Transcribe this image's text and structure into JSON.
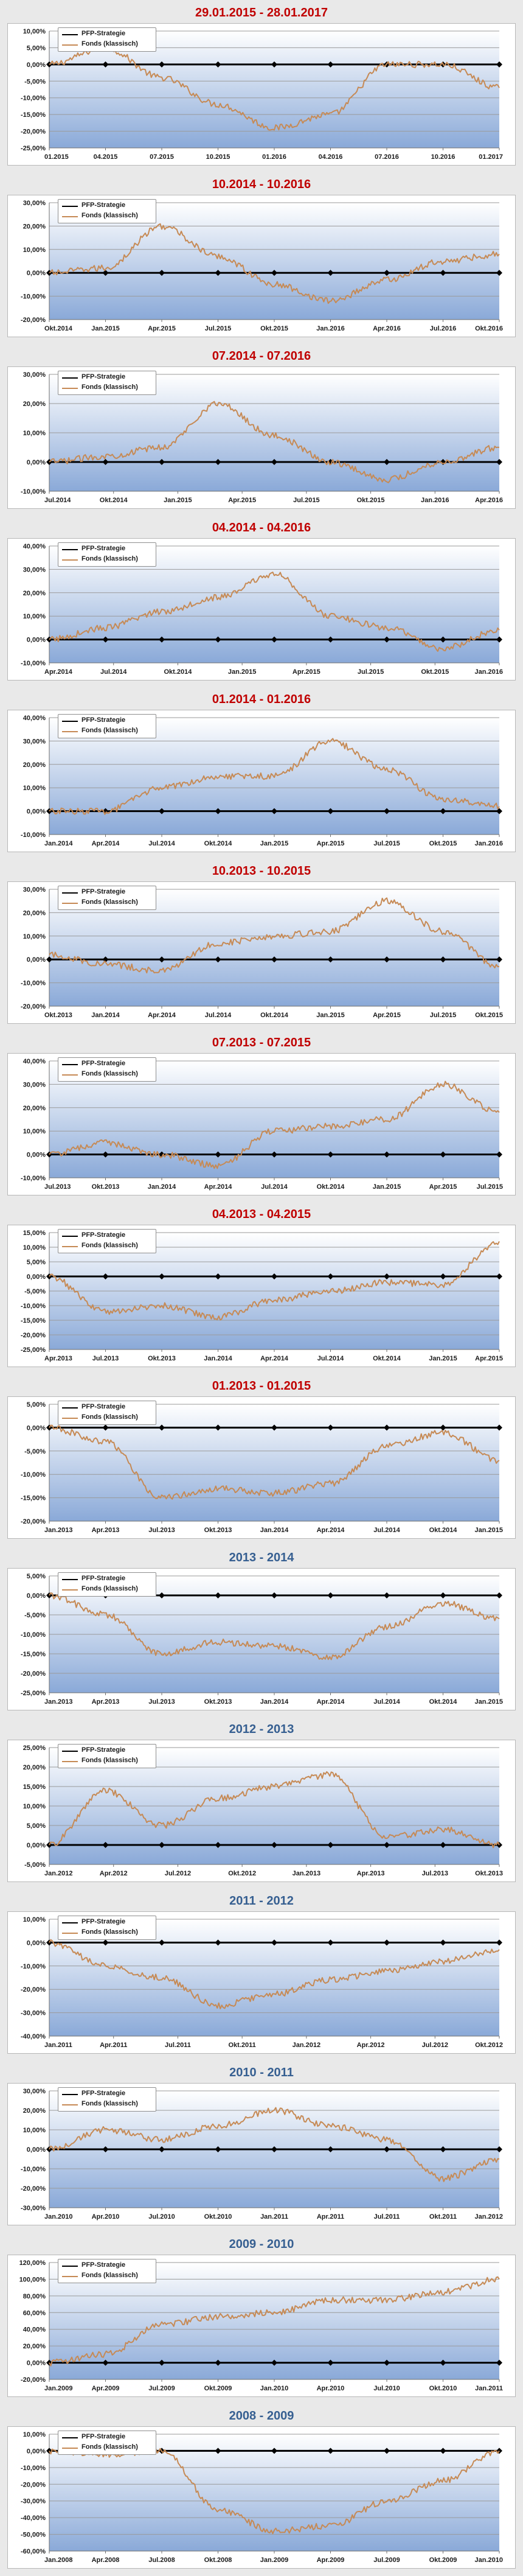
{
  "colors": {
    "title_red": "#c00000",
    "title_blue": "#365f91",
    "strategy_line": "#000000",
    "fund_line": "#c68a55",
    "plot_bg_top": "#ffffff",
    "plot_bg_bottom": "#8aa9d8"
  },
  "legend": {
    "strategy": "PFP-Strategie",
    "fund": "Fonds (klassisch)"
  },
  "chart_data": [
    {
      "type": "line",
      "title": "29.01.2015 - 28.01.2017",
      "title_color": "#c00000",
      "legend_placement": "top-left",
      "grid": true,
      "ylim": [
        -25,
        10
      ],
      "yticks": [
        10,
        5,
        0,
        -5,
        -10,
        -15,
        -20,
        -25
      ],
      "yticklabels": [
        "10,00%",
        "5,00%",
        "0,00%",
        "-5,00%",
        "-10,00%",
        "-15,00%",
        "-20,00%",
        "-25,00%"
      ],
      "xticklabels": [
        "01.2015",
        "04.2015",
        "07.2015",
        "10.2015",
        "01.2016",
        "04.2016",
        "07.2016",
        "10.2016",
        "01.2017"
      ],
      "series": [
        {
          "name": "PFP-Strategie",
          "values": [
            0,
            0,
            0,
            0,
            0,
            0,
            0,
            0,
            0
          ]
        },
        {
          "name": "Fonds (klassisch)",
          "values": [
            0,
            5,
            -4,
            -12,
            -19,
            -15,
            0,
            0,
            -7
          ]
        }
      ]
    },
    {
      "type": "line",
      "title": "10.2014 - 10.2016",
      "title_color": "#c00000",
      "legend_placement": "top-left",
      "grid": true,
      "ylim": [
        -20,
        30
      ],
      "yticks": [
        30,
        20,
        10,
        0,
        -10,
        -20
      ],
      "yticklabels": [
        "30,00%",
        "20,00%",
        "10,00%",
        "0,00%",
        "-10,00%",
        "-20,00%"
      ],
      "xticklabels": [
        "Okt.2014",
        "Jan.2015",
        "Apr.2015",
        "Jul.2015",
        "Okt.2015",
        "Jan.2016",
        "Apr.2016",
        "Jul.2016",
        "Okt.2016"
      ],
      "series": [
        {
          "name": "PFP-Strategie",
          "values": [
            0,
            0,
            0,
            0,
            0,
            0,
            0,
            0,
            0
          ]
        },
        {
          "name": "Fonds (klassisch)",
          "values": [
            0,
            2,
            20,
            7,
            -5,
            -12,
            -3,
            5,
            8
          ]
        }
      ]
    },
    {
      "type": "line",
      "title": "07.2014 - 07.2016",
      "title_color": "#c00000",
      "legend_placement": "top-left",
      "grid": true,
      "ylim": [
        -10,
        30
      ],
      "yticks": [
        30,
        20,
        10,
        0,
        -10
      ],
      "yticklabels": [
        "30,00%",
        "20,00%",
        "10,00%",
        "0,00%",
        "-10,00%"
      ],
      "xticklabels": [
        "Jul.2014",
        "Okt.2014",
        "Jan.2015",
        "Apr.2015",
        "Jul.2015",
        "Okt.2015",
        "Jan.2016",
        "Apr.2016"
      ],
      "series": [
        {
          "name": "PFP-Strategie",
          "values": [
            0,
            0,
            0,
            0,
            0,
            0,
            0,
            0,
            0
          ]
        },
        {
          "name": "Fonds (klassisch)",
          "values": [
            0,
            2,
            5,
            20,
            9,
            0,
            -6,
            0,
            5
          ]
        }
      ]
    },
    {
      "type": "line",
      "title": "04.2014 - 04.2016",
      "title_color": "#c00000",
      "legend_placement": "top-left",
      "grid": true,
      "ylim": [
        -10,
        40
      ],
      "yticks": [
        40,
        30,
        20,
        10,
        0,
        -10
      ],
      "yticklabels": [
        "40,00%",
        "30,00%",
        "20,00%",
        "10,00%",
        "0,00%",
        "-10,00%"
      ],
      "xticklabels": [
        "Apr.2014",
        "Jul.2014",
        "Okt.2014",
        "Jan.2015",
        "Apr.2015",
        "Jul.2015",
        "Okt.2015",
        "Jan.2016"
      ],
      "series": [
        {
          "name": "PFP-Strategie",
          "values": [
            0,
            0,
            0,
            0,
            0,
            0,
            0,
            0,
            0
          ]
        },
        {
          "name": "Fonds (klassisch)",
          "values": [
            0,
            5,
            12,
            18,
            28,
            10,
            5,
            -4,
            4
          ]
        }
      ]
    },
    {
      "type": "line",
      "title": "01.2014 - 01.2016",
      "title_color": "#c00000",
      "legend_placement": "top-left",
      "grid": true,
      "ylim": [
        -10,
        40
      ],
      "yticks": [
        40,
        30,
        20,
        10,
        0,
        -10
      ],
      "yticklabels": [
        "40,00%",
        "30,00%",
        "20,00%",
        "10,00%",
        "0,00%",
        "-10,00%"
      ],
      "xticklabels": [
        "Jan.2014",
        "Apr.2014",
        "Jul.2014",
        "Okt.2014",
        "Jan.2015",
        "Apr.2015",
        "Jul.2015",
        "Okt.2015",
        "Jan.2016"
      ],
      "series": [
        {
          "name": "PFP-Strategie",
          "values": [
            0,
            0,
            0,
            0,
            0,
            0,
            0,
            0,
            0
          ]
        },
        {
          "name": "Fonds (klassisch)",
          "values": [
            0,
            0,
            10,
            15,
            15,
            30,
            18,
            5,
            2
          ]
        }
      ]
    },
    {
      "type": "line",
      "title": "10.2013 - 10.2015",
      "title_color": "#c00000",
      "legend_placement": "top-left",
      "grid": true,
      "ylim": [
        -20,
        30
      ],
      "yticks": [
        30,
        20,
        10,
        0,
        -10,
        -20
      ],
      "yticklabels": [
        "30,00%",
        "20,00%",
        "10,00%",
        "0,00%",
        "-10,00%",
        "-20,00%"
      ],
      "xticklabels": [
        "Okt.2013",
        "Jan.2014",
        "Apr.2014",
        "Jul.2014",
        "Okt.2014",
        "Jan.2015",
        "Apr.2015",
        "Jul.2015",
        "Okt.2015"
      ],
      "series": [
        {
          "name": "PFP-Strategie",
          "values": [
            0,
            0,
            0,
            0,
            0,
            0,
            0,
            0,
            0
          ]
        },
        {
          "name": "Fonds (klassisch)",
          "values": [
            2,
            -2,
            -5,
            7,
            10,
            12,
            25,
            12,
            -3
          ]
        }
      ]
    },
    {
      "type": "line",
      "title": "07.2013 - 07.2015",
      "title_color": "#c00000",
      "legend_placement": "top-left",
      "grid": true,
      "ylim": [
        -10,
        40
      ],
      "yticks": [
        40,
        30,
        20,
        10,
        0,
        -10
      ],
      "yticklabels": [
        "40,00%",
        "30,00%",
        "20,00%",
        "10,00%",
        "0,00%",
        "-10,00%"
      ],
      "xticklabels": [
        "Jul.2013",
        "Okt.2013",
        "Jan.2014",
        "Apr.2014",
        "Jul.2014",
        "Okt.2014",
        "Jan.2015",
        "Apr.2015",
        "Jul.2015"
      ],
      "series": [
        {
          "name": "PFP-Strategie",
          "values": [
            0,
            0,
            0,
            0,
            0,
            0,
            0,
            0,
            0
          ]
        },
        {
          "name": "Fonds (klassisch)",
          "values": [
            0,
            5,
            0,
            -5,
            10,
            12,
            15,
            30,
            18
          ]
        }
      ]
    },
    {
      "type": "line",
      "title": "04.2013 - 04.2015",
      "title_color": "#c00000",
      "legend_placement": "top-left",
      "grid": true,
      "ylim": [
        -25,
        15
      ],
      "yticks": [
        15,
        10,
        5,
        0,
        -5,
        -10,
        -15,
        -20,
        -25
      ],
      "yticklabels": [
        "15,00%",
        "10,00%",
        "5,00%",
        "0,00%",
        "-5,00%",
        "-10,00%",
        "-15,00%",
        "-20,00%",
        "-25,00%"
      ],
      "xticklabels": [
        "Apr.2013",
        "Jul.2013",
        "Okt.2013",
        "Jan.2014",
        "Apr.2014",
        "Jul.2014",
        "Okt.2014",
        "Jan.2015",
        "Apr.2015"
      ],
      "series": [
        {
          "name": "PFP-Strategie",
          "values": [
            0,
            0,
            0,
            0,
            0,
            0,
            0,
            0,
            0
          ]
        },
        {
          "name": "Fonds (klassisch)",
          "values": [
            0,
            -12,
            -10,
            -14,
            -8,
            -5,
            -2,
            -3,
            12
          ]
        }
      ]
    },
    {
      "type": "line",
      "title": "01.2013 - 01.2015",
      "title_color": "#c00000",
      "legend_placement": "top-left",
      "grid": true,
      "ylim": [
        -20,
        5
      ],
      "yticks": [
        5,
        0,
        -5,
        -10,
        -15,
        -20
      ],
      "yticklabels": [
        "5,00%",
        "0,00%",
        "-5,00%",
        "-10,00%",
        "-15,00%",
        "-20,00%"
      ],
      "xticklabels": [
        "Jan.2013",
        "Apr.2013",
        "Jul.2013",
        "Okt.2013",
        "Jan.2014",
        "Apr.2014",
        "Jul.2014",
        "Okt.2014",
        "Jan.2015"
      ],
      "series": [
        {
          "name": "PFP-Strategie",
          "values": [
            0,
            0,
            0,
            0,
            0,
            0,
            0,
            0,
            0
          ]
        },
        {
          "name": "Fonds (klassisch)",
          "values": [
            0,
            -3,
            -15,
            -13,
            -14,
            -12,
            -4,
            -1,
            -7
          ]
        }
      ]
    },
    {
      "type": "line",
      "title": "2013 - 2014",
      "title_color": "#365f91",
      "legend_placement": "top-left",
      "grid": true,
      "ylim": [
        -25,
        5
      ],
      "yticks": [
        5,
        0,
        -5,
        -10,
        -15,
        -20,
        -25
      ],
      "yticklabels": [
        "5,00%",
        "0,00%",
        "-5,00%",
        "-10,00%",
        "-15,00%",
        "-20,00%",
        "-25,00%"
      ],
      "xticklabels": [
        "Jan.2013",
        "Apr.2013",
        "Jul.2013",
        "Okt.2013",
        "Jan.2014",
        "Apr.2014",
        "Jul.2014",
        "Okt.2014",
        "Jan.2015"
      ],
      "series": [
        {
          "name": "PFP-Strategie",
          "values": [
            0,
            0,
            0,
            0,
            0,
            0,
            0,
            0,
            0
          ]
        },
        {
          "name": "Fonds (klassisch)",
          "values": [
            0,
            -5,
            -15,
            -12,
            -13,
            -16,
            -8,
            -2,
            -6
          ]
        }
      ]
    },
    {
      "type": "line",
      "title": "2012 - 2013",
      "title_color": "#365f91",
      "legend_placement": "top-left",
      "grid": true,
      "ylim": [
        -5,
        25
      ],
      "yticks": [
        25,
        20,
        15,
        10,
        5,
        0,
        -5
      ],
      "yticklabels": [
        "25,00%",
        "20,00%",
        "15,00%",
        "10,00%",
        "5,00%",
        "0,00%",
        "-5,00%"
      ],
      "xticklabels": [
        "Jan.2012",
        "Apr.2012",
        "Jul.2012",
        "Okt.2012",
        "Jan.2013",
        "Apr.2013",
        "Jul.2013",
        "Okt.2013"
      ],
      "series": [
        {
          "name": "PFP-Strategie",
          "values": [
            0,
            0,
            0,
            0,
            0,
            0,
            0,
            0,
            0
          ]
        },
        {
          "name": "Fonds (klassisch)",
          "values": [
            0,
            14,
            5,
            12,
            15,
            18,
            2,
            4,
            0
          ]
        }
      ]
    },
    {
      "type": "line",
      "title": "2011 - 2012",
      "title_color": "#365f91",
      "legend_placement": "top-left",
      "grid": true,
      "ylim": [
        -40,
        10
      ],
      "yticks": [
        10,
        0,
        -10,
        -20,
        -30,
        -40
      ],
      "yticklabels": [
        "10,00%",
        "0,00%",
        "-10,00%",
        "-20,00%",
        "-30,00%",
        "-40,00%"
      ],
      "xticklabels": [
        "Jan.2011",
        "Apr.2011",
        "Jul.2011",
        "Okt.2011",
        "Jan.2012",
        "Apr.2012",
        "Jul.2012",
        "Okt.2012"
      ],
      "series": [
        {
          "name": "PFP-Strategie",
          "values": [
            0,
            0,
            0,
            0,
            0,
            0,
            0,
            0,
            0
          ]
        },
        {
          "name": "Fonds (klassisch)",
          "values": [
            0,
            -10,
            -15,
            -27,
            -22,
            -16,
            -12,
            -8,
            -3
          ]
        }
      ]
    },
    {
      "type": "line",
      "title": "2010 - 2011",
      "title_color": "#365f91",
      "legend_placement": "top-left",
      "grid": true,
      "ylim": [
        -30,
        30
      ],
      "yticks": [
        30,
        20,
        10,
        0,
        -10,
        -20,
        -30
      ],
      "yticklabels": [
        "30,00%",
        "20,00%",
        "10,00%",
        "0,00%",
        "-10,00%",
        "-20,00%",
        "-30,00%"
      ],
      "xticklabels": [
        "Jan.2010",
        "Apr.2010",
        "Jul.2010",
        "Okt.2010",
        "Jan.2011",
        "Apr.2011",
        "Jul.2011",
        "Okt.2011",
        "Jan.2012"
      ],
      "series": [
        {
          "name": "PFP-Strategie",
          "values": [
            0,
            0,
            0,
            0,
            0,
            0,
            0,
            0,
            0
          ]
        },
        {
          "name": "Fonds (klassisch)",
          "values": [
            0,
            10,
            5,
            12,
            20,
            12,
            5,
            -15,
            -5
          ]
        }
      ]
    },
    {
      "type": "line",
      "title": "2009 - 2010",
      "title_color": "#365f91",
      "legend_placement": "top-left",
      "grid": true,
      "ylim": [
        -20,
        120
      ],
      "yticks": [
        120,
        100,
        80,
        60,
        40,
        20,
        0,
        -20
      ],
      "yticklabels": [
        "120,00%",
        "100,00%",
        "80,00%",
        "60,00%",
        "40,00%",
        "20,00%",
        "0,00%",
        "-20,00%"
      ],
      "xticklabels": [
        "Jan.2009",
        "Apr.2009",
        "Jul.2009",
        "Okt.2009",
        "Jan.2010",
        "Apr.2010",
        "Jul.2010",
        "Okt.2010",
        "Jan.2011"
      ],
      "series": [
        {
          "name": "PFP-Strategie",
          "values": [
            0,
            0,
            0,
            0,
            0,
            0,
            0,
            0,
            0
          ]
        },
        {
          "name": "Fonds (klassisch)",
          "values": [
            0,
            10,
            45,
            55,
            60,
            75,
            75,
            85,
            100
          ]
        }
      ]
    },
    {
      "type": "line",
      "title": "2008 - 2009",
      "title_color": "#365f91",
      "legend_placement": "top-left",
      "grid": true,
      "ylim": [
        -60,
        10
      ],
      "yticks": [
        10,
        0,
        -10,
        -20,
        -30,
        -40,
        -50,
        -60
      ],
      "yticklabels": [
        "10,00%",
        "0,00%",
        "-10,00%",
        "-20,00%",
        "-30,00%",
        "-40,00%",
        "-50,00%",
        "-60,00%"
      ],
      "xticklabels": [
        "Jan.2008",
        "Apr.2008",
        "Jul.2008",
        "Okt.2008",
        "Jan.2009",
        "Apr.2009",
        "Jul.2009",
        "Okt.2009",
        "Jan.2010"
      ],
      "series": [
        {
          "name": "PFP-Strategie",
          "values": [
            0,
            0,
            0,
            0,
            0,
            0,
            0,
            0,
            0
          ]
        },
        {
          "name": "Fonds (klassisch)",
          "values": [
            0,
            -2,
            0,
            -35,
            -48,
            -45,
            -30,
            -18,
            0
          ]
        }
      ]
    }
  ]
}
